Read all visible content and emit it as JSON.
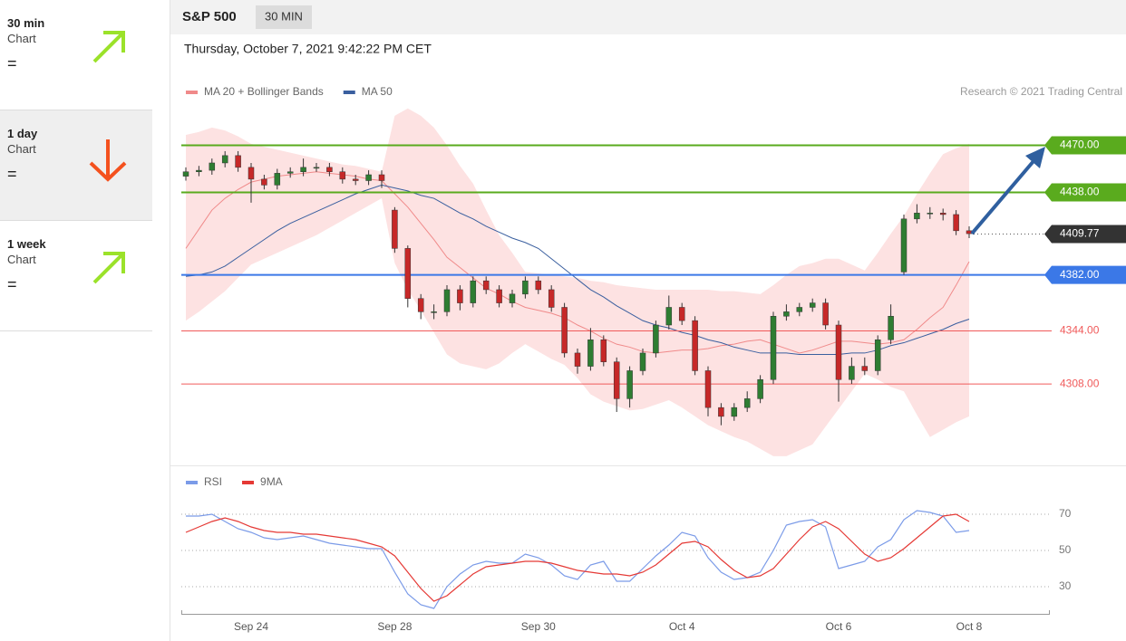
{
  "sidebar": {
    "items": [
      {
        "period": "30 min",
        "link": "Chart",
        "status": "="
      },
      {
        "period": "1 day",
        "link": "Chart",
        "status": "="
      },
      {
        "period": "1 week",
        "link": "Chart",
        "status": "="
      }
    ]
  },
  "header": {
    "symbol": "S&P 500",
    "interval": "30 MIN",
    "date": "Thursday, October 7, 2021 9:42:22 PM CET"
  },
  "chart_data": [
    {
      "type": "candlestick",
      "source": "Research © 2021 Trading Central",
      "categories": [
        null,
        null,
        null,
        null,
        null,
        "Sep 24",
        null,
        null,
        null,
        null,
        null,
        null,
        null,
        null,
        null,
        null,
        "Sep 28",
        null,
        null,
        null,
        null,
        null,
        null,
        null,
        null,
        null,
        null,
        "Sep 30",
        null,
        null,
        null,
        null,
        null,
        null,
        null,
        null,
        null,
        null,
        "Oct 4",
        null,
        null,
        null,
        null,
        null,
        null,
        null,
        null,
        null,
        null,
        null,
        "Oct 6",
        null,
        null,
        null,
        null,
        null,
        null,
        null,
        null,
        null,
        "Oct 8"
      ],
      "open": [
        4449,
        4452,
        4453,
        4458,
        4463,
        4455,
        4447,
        4443,
        4451,
        4452,
        4455,
        4455,
        4452,
        4447,
        4446,
        4450,
        4426,
        4400,
        4366,
        4357,
        4357,
        4372,
        4363,
        4378,
        4372,
        4363,
        4369,
        4378,
        4372,
        4360,
        4329,
        4320,
        4338,
        4323,
        4298,
        4317,
        4329,
        4348,
        4360,
        4351,
        4317,
        4292,
        4286,
        4292,
        4298,
        4311,
        4354,
        4357,
        4360,
        4363,
        4348,
        4311,
        4320,
        4317,
        4338,
        4384,
        4420,
        4424,
        4424,
        4423,
        4412
      ],
      "high": [
        4455,
        4456,
        4461,
        4466,
        4466,
        4458,
        4450,
        4454,
        4455,
        4461,
        4458,
        4458,
        4455,
        4450,
        4453,
        4453,
        4428,
        4402,
        4369,
        4362,
        4375,
        4375,
        4381,
        4381,
        4375,
        4372,
        4381,
        4381,
        4375,
        4363,
        4332,
        4346,
        4341,
        4326,
        4320,
        4332,
        4351,
        4368,
        4363,
        4354,
        4320,
        4295,
        4295,
        4303,
        4314,
        4357,
        4362,
        4363,
        4366,
        4366,
        4351,
        4326,
        4326,
        4341,
        4362,
        4423,
        4430,
        4428,
        4427,
        4426,
        4415
      ],
      "low": [
        4446,
        4449,
        4450,
        4455,
        4452,
        4431,
        4440,
        4440,
        4448,
        4449,
        4452,
        4449,
        4444,
        4443,
        4443,
        4441,
        4397,
        4360,
        4352,
        4352,
        4354,
        4358,
        4360,
        4369,
        4360,
        4360,
        4366,
        4369,
        4357,
        4326,
        4315,
        4317,
        4320,
        4289,
        4292,
        4314,
        4326,
        4345,
        4348,
        4314,
        4286,
        4280,
        4283,
        4289,
        4295,
        4308,
        4351,
        4354,
        4357,
        4345,
        4296,
        4308,
        4314,
        4314,
        4335,
        4382,
        4417,
        4420,
        4419,
        4409,
        4407
      ],
      "close": [
        4452,
        4453,
        4458,
        4463,
        4455,
        4447,
        4443,
        4451,
        4452,
        4455,
        4455,
        4452,
        4447,
        4446,
        4450,
        4446,
        4400,
        4366,
        4357,
        4357,
        4372,
        4363,
        4378,
        4372,
        4363,
        4369,
        4378,
        4372,
        4360,
        4329,
        4320,
        4338,
        4323,
        4298,
        4317,
        4329,
        4348,
        4360,
        4351,
        4317,
        4292,
        4286,
        4292,
        4298,
        4311,
        4354,
        4357,
        4360,
        4363,
        4348,
        4311,
        4320,
        4317,
        4338,
        4354,
        4420,
        4424,
        4424,
        4423,
        4412,
        4410
      ],
      "up_color": "#2e7d32",
      "down_color": "#c62828",
      "series": [
        {
          "name": "MA 20 + Bollinger Bands",
          "color": "#f08a8a",
          "band_color": "#fde2e2",
          "values": [
            4400,
            4413,
            4426,
            4434,
            4440,
            4445,
            4447,
            4449,
            4450,
            4451,
            4452,
            4451,
            4450,
            4449,
            4447,
            4446,
            4437,
            4428,
            4417,
            4406,
            4394,
            4387,
            4380,
            4373,
            4369,
            4364,
            4360,
            4358,
            4356,
            4353,
            4348,
            4344,
            4339,
            4335,
            4333,
            4330,
            4329,
            4330,
            4331,
            4331,
            4332,
            4334,
            4335,
            4337,
            4338,
            4335,
            4332,
            4329,
            4331,
            4334,
            4337,
            4337,
            4336,
            4335,
            4336,
            4338,
            4345,
            4353,
            4360,
            4375,
            4391
          ],
          "upper": [
            4477,
            4479,
            4482,
            4480,
            4476,
            4471,
            4469,
            4467,
            4465,
            4463,
            4461,
            4459,
            4457,
            4456,
            4454,
            4452,
            4490,
            4495,
            4490,
            4482,
            4470,
            4456,
            4444,
            4426,
            4409,
            4397,
            4384,
            4383,
            4382,
            4381,
            4380,
            4378,
            4377,
            4375,
            4374,
            4373,
            4372,
            4372,
            4372,
            4372,
            4372,
            4371,
            4371,
            4370,
            4369,
            4375,
            4382,
            4388,
            4390,
            4393,
            4393,
            4389,
            4385,
            4397,
            4410,
            4422,
            4437,
            4451,
            4464,
            4468,
            4471
          ],
          "lower": [
            4351,
            4357,
            4364,
            4371,
            4380,
            4389,
            4393,
            4397,
            4401,
            4405,
            4409,
            4414,
            4419,
            4424,
            4429,
            4434,
            4390,
            4372,
            4358,
            4343,
            4328,
            4322,
            4320,
            4318,
            4322,
            4329,
            4335,
            4330,
            4325,
            4321,
            4312,
            4301,
            4296,
            4293,
            4290,
            4291,
            4294,
            4297,
            4292,
            4286,
            4280,
            4276,
            4272,
            4269,
            4264,
            4259,
            4259,
            4263,
            4267,
            4279,
            4291,
            4303,
            4315,
            4311,
            4306,
            4303,
            4287,
            4272,
            4277,
            4282,
            4286
          ]
        },
        {
          "name": "MA 50",
          "color": "#3a5f9f",
          "values": [
            4381,
            4382,
            4384,
            4388,
            4394,
            4400,
            4406,
            4412,
            4417,
            4421,
            4425,
            4429,
            4433,
            4437,
            4440,
            4443,
            4441,
            4439,
            4436,
            4434,
            4429,
            4424,
            4420,
            4415,
            4411,
            4407,
            4404,
            4400,
            4393,
            4386,
            4379,
            4372,
            4367,
            4361,
            4356,
            4351,
            4348,
            4346,
            4343,
            4341,
            4338,
            4336,
            4333,
            4331,
            4329,
            4329,
            4329,
            4328,
            4328,
            4328,
            4328,
            4329,
            4329,
            4331,
            4334,
            4336,
            4339,
            4342,
            4345,
            4349,
            4352
          ]
        }
      ],
      "levels": [
        {
          "value": 4470,
          "label": "4470.00",
          "color": "#5aab1e",
          "label_box": true
        },
        {
          "value": 4438,
          "label": "4438.00",
          "color": "#5aab1e",
          "label_box": true
        },
        {
          "value": 4382,
          "label": "4382.00",
          "color": "#3b78e7",
          "label_box": true
        },
        {
          "value": 4344,
          "label": "4344.00",
          "color": "#f05a5a",
          "label_box": false
        },
        {
          "value": 4308,
          "label": "4308.00",
          "color": "#f05a5a",
          "label_box": false
        }
      ],
      "last_price": {
        "value": 4409.77,
        "label": "4409.77",
        "color": "#333333"
      },
      "ylim": [
        4254,
        4544
      ]
    },
    {
      "type": "line",
      "series": [
        {
          "name": "RSI",
          "color": "#7b9be8",
          "values": [
            69,
            69,
            70,
            66,
            62,
            60,
            57,
            56,
            57,
            58,
            56,
            54,
            53,
            52,
            51,
            51,
            38,
            26,
            20,
            18,
            30,
            37,
            42,
            44,
            43,
            43,
            48,
            46,
            42,
            36,
            34,
            42,
            44,
            33,
            33,
            40,
            47,
            53,
            60,
            58,
            46,
            38,
            34,
            35,
            38,
            50,
            64,
            66,
            67,
            63,
            40,
            42,
            44,
            52,
            56,
            67,
            72,
            71,
            69,
            60,
            61
          ]
        },
        {
          "name": "9MA",
          "color": "#e53935",
          "values": [
            60,
            63,
            66,
            68,
            66,
            63,
            61,
            60,
            60,
            59,
            59,
            58,
            57,
            56,
            54,
            52,
            47,
            38,
            29,
            22,
            25,
            31,
            37,
            41,
            42,
            43,
            44,
            44,
            43,
            41,
            39,
            38,
            37,
            37,
            36,
            38,
            42,
            48,
            54,
            55,
            52,
            45,
            39,
            35,
            36,
            40,
            48,
            56,
            63,
            66,
            62,
            55,
            48,
            44,
            46,
            51,
            57,
            63,
            69,
            70,
            66
          ]
        }
      ],
      "ylim": [
        16.5,
        81.5
      ],
      "yticks": [
        70,
        50,
        30
      ],
      "grid": true
    }
  ]
}
